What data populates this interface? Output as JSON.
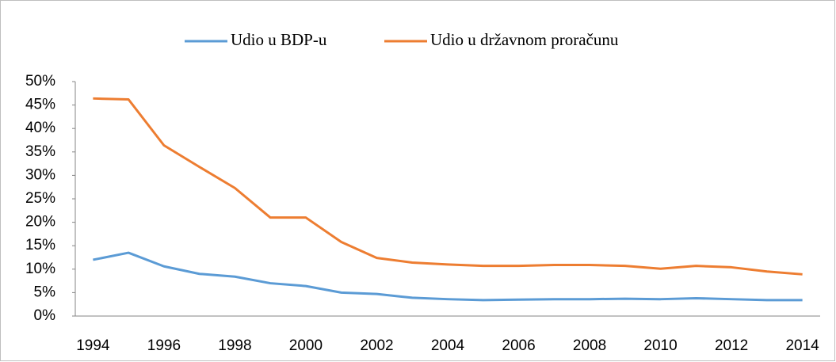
{
  "chart_data": {
    "type": "line",
    "categories": [
      "1994",
      null,
      "1996",
      null,
      "1998",
      null,
      "2000",
      null,
      "2002",
      null,
      "2004",
      null,
      "2006",
      null,
      "2008",
      null,
      "2010",
      null,
      "2012",
      null,
      "2014"
    ],
    "series": [
      {
        "name": "Udio u BDP-u",
        "color": "#5b9bd5",
        "values": [
          12,
          13.5,
          10.6,
          9,
          8.4,
          7,
          6.4,
          5,
          4.7,
          3.9,
          3.6,
          3.4,
          3.5,
          3.6,
          3.6,
          3.7,
          3.6,
          3.8,
          3.6,
          3.4,
          3.4
        ]
      },
      {
        "name": "Udio u državnom proračunu",
        "color": "#ed7d31",
        "values": [
          46.4,
          46.2,
          36.4,
          31.8,
          27.3,
          21,
          21,
          15.8,
          12.4,
          11.4,
          11,
          10.7,
          10.7,
          10.9,
          10.9,
          10.7,
          10.1,
          10.7,
          10.4,
          9.5,
          8.9
        ]
      }
    ],
    "ylim": [
      0,
      50
    ],
    "yticks": [
      {
        "value": 0,
        "label": "0%"
      },
      {
        "value": 5,
        "label": "5%"
      },
      {
        "value": 10,
        "label": "10%"
      },
      {
        "value": 15,
        "label": "15%"
      },
      {
        "value": 20,
        "label": "20%"
      },
      {
        "value": 25,
        "label": "25%"
      },
      {
        "value": 30,
        "label": "30%"
      },
      {
        "value": 35,
        "label": "35%"
      },
      {
        "value": 40,
        "label": "40%"
      },
      {
        "value": 45,
        "label": "45%"
      },
      {
        "value": 50,
        "label": "50%"
      }
    ],
    "legend": "top"
  }
}
